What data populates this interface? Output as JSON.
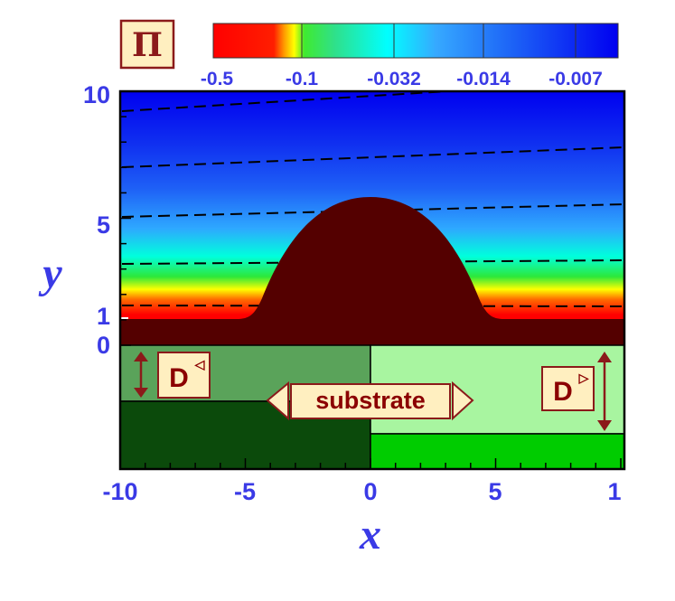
{
  "chart_data": {
    "type": "heatmap",
    "xlabel": "x",
    "ylabel": "y",
    "xlim": [
      -10,
      10
    ],
    "ylim": [
      -5,
      10
    ],
    "x_ticks": [
      "-10",
      "-5",
      "0",
      "5",
      "1"
    ],
    "y_ticks": [
      "10",
      "5",
      "1",
      "0"
    ],
    "colorbar": {
      "symbol": "Π",
      "ticks": [
        "-0.5",
        "-0.1",
        "-0.032",
        "-0.014",
        "-0.007"
      ],
      "colors": [
        "#ff0000",
        "#ff2a00",
        "#ffff00",
        "#2fe830",
        "#00ffff",
        "#3a9bff",
        "#1f55f7",
        "#0000f0"
      ]
    },
    "droplet": {
      "peak_height": 5.9,
      "film_thickness": 1,
      "color": "#540000"
    },
    "substrate": {
      "label": "substrate",
      "left_label": "D",
      "left_marker": "◁",
      "right_label": "D",
      "right_marker": "▷",
      "left_top_color": "#5aa35a",
      "left_bottom_color": "#0b4a0b",
      "right_top_color": "#a8f5a0",
      "right_bottom_color": "#00cc00"
    },
    "contour_style": "dashed",
    "contour_color": "#000000"
  }
}
